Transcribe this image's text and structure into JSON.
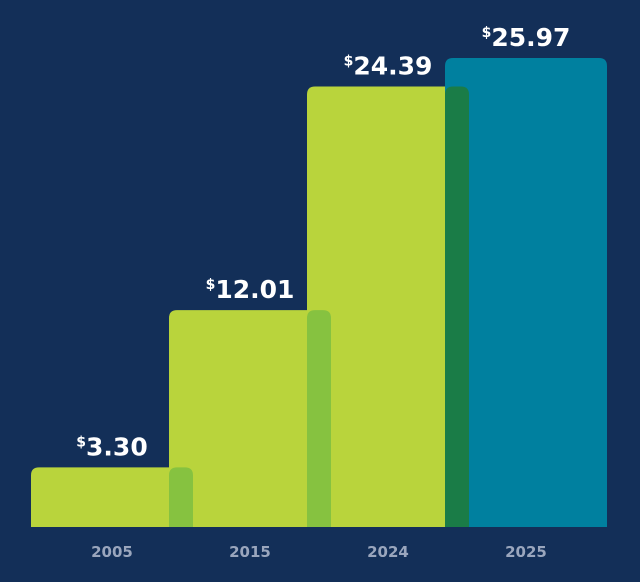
{
  "chart_data": {
    "type": "bar",
    "categories": [
      "2005",
      "2015",
      "2024",
      "2025"
    ],
    "values": [
      3.3,
      12.01,
      24.39,
      25.97
    ],
    "value_labels": [
      "3.30",
      "12.01",
      "24.39",
      "25.97"
    ],
    "currency_symbol": "$",
    "title": "",
    "xlabel": "",
    "ylabel": "",
    "ylim": [
      0,
      26
    ],
    "grid": false,
    "legend": "none"
  },
  "colors": {
    "background": "#132f58",
    "bar_fill": "#b9d43c",
    "bar_highlight": "#00809f",
    "overlap_light": "#86c240",
    "overlap_dark": "#1a7c47",
    "label_text": "#ffffff",
    "tick_text": "#9aa6bd"
  }
}
